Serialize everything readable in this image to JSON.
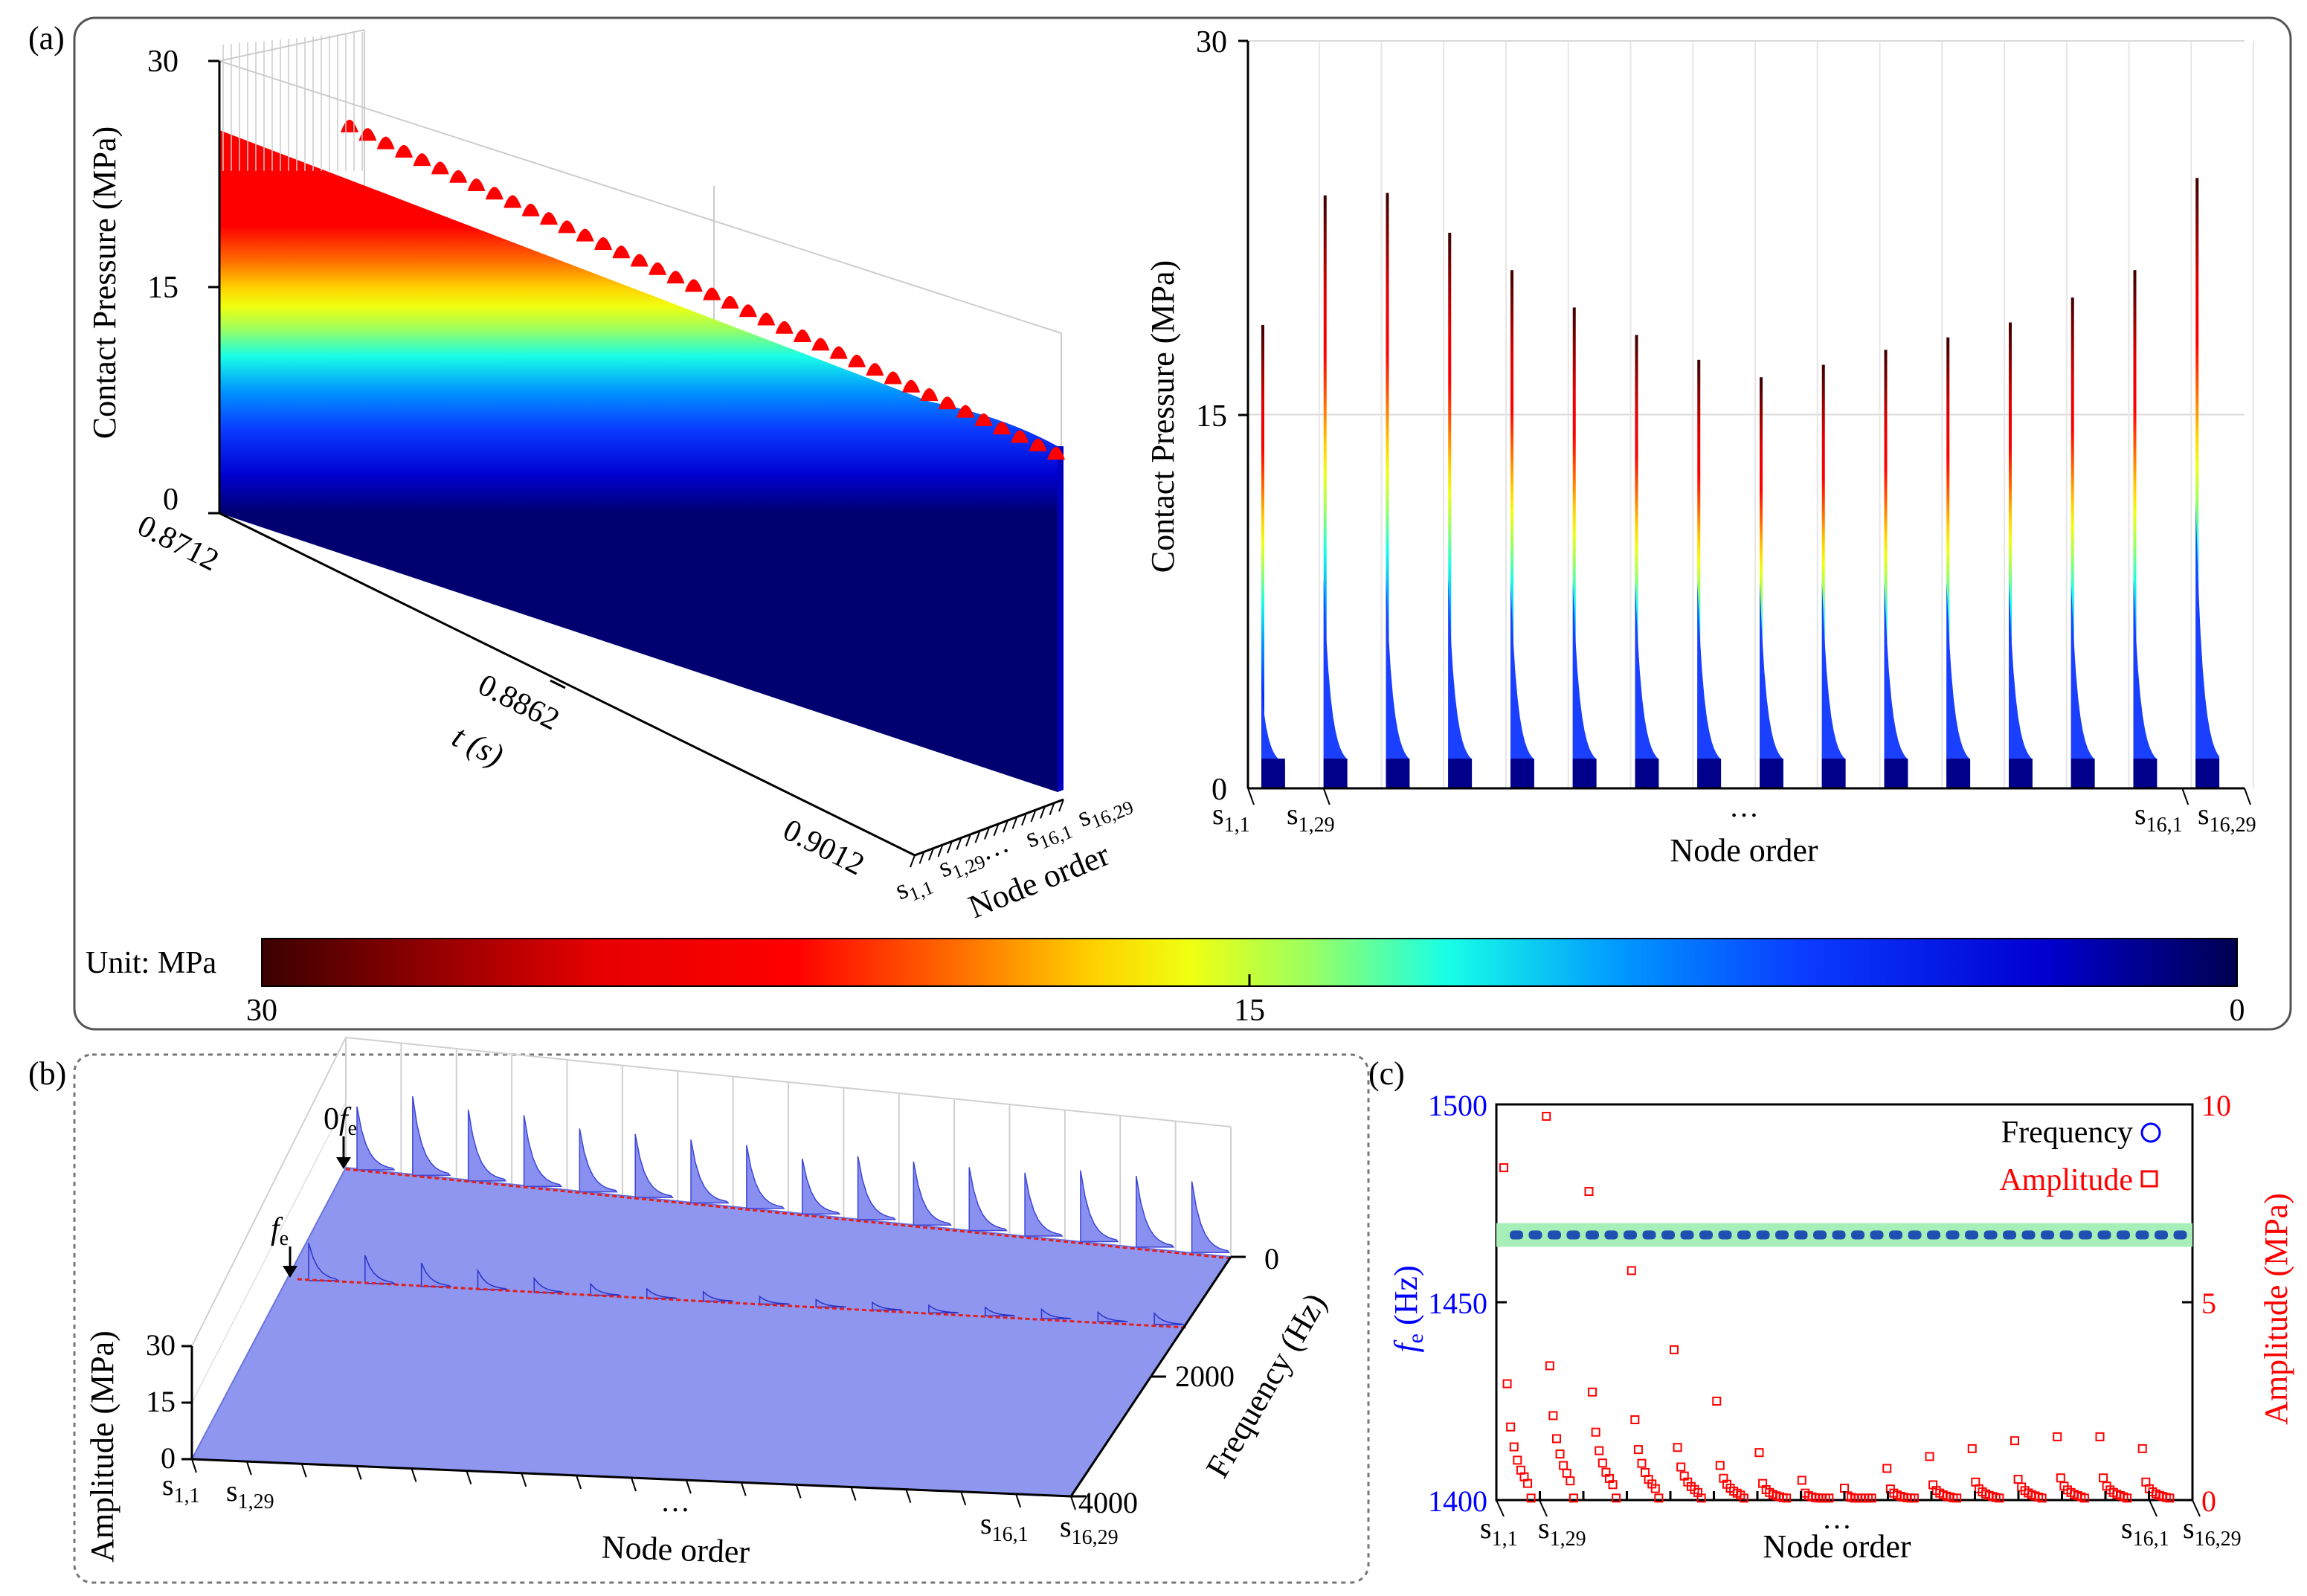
{
  "labels": {
    "panel_a": "(a)",
    "panel_b": "(b)",
    "panel_c": "(c)"
  },
  "chart_data": [
    {
      "id": "a-3d",
      "type": "area",
      "title": "",
      "zlabel": "Contact Pressure (MPa)",
      "zticks": [
        "0",
        "15",
        "30"
      ],
      "ylabel": "t (s)",
      "yticks": [
        "0.8712",
        "0.8862",
        "0.9012"
      ],
      "xlabel": "Node order",
      "xticks": [
        "s1,1",
        "s1,29",
        "…",
        "s16,1",
        "s16,29"
      ],
      "zlim": [
        0,
        30
      ],
      "description_values": {
        "peak_pressure_range_MPa": [
          21,
          27
        ],
        "periodic_peaks_count": 40
      }
    },
    {
      "id": "a-2d",
      "type": "bar",
      "ylabel": "Contact Pressure (MPa)",
      "yticks": [
        "0",
        "15",
        "30"
      ],
      "ylim": [
        0,
        30
      ],
      "xlabel": "Node order",
      "xticks": [
        "s1,1",
        "s1,29",
        "…",
        "s16,1",
        "s16,29"
      ],
      "series": [
        {
          "name": "segment peaks",
          "values": [
            18.6,
            23.8,
            23.9,
            22.3,
            20.8,
            19.3,
            18.2,
            17.2,
            16.5,
            17.0,
            17.6,
            18.1,
            18.7,
            19.7,
            20.8,
            24.5
          ]
        }
      ],
      "segment_low_values": [
        4.0,
        8.4,
        8.5,
        8.4,
        8.3,
        8.3,
        8.3,
        8.3,
        8.3,
        8.3,
        8.3,
        8.3,
        8.3,
        8.3,
        8.4,
        11.5
      ]
    },
    {
      "id": "colorbar",
      "type": "heatmap",
      "label": "Unit: MPa",
      "ticks": [
        "30",
        "15",
        "0"
      ],
      "range": [
        30,
        0
      ],
      "colors": [
        "#3b0000",
        "#8c0000",
        "#e60000",
        "#ff0000",
        "#ff6a00",
        "#ffd000",
        "#f0ff10",
        "#9bff60",
        "#18ffe6",
        "#0096ff",
        "#0a3cff",
        "#0000d2",
        "#000050"
      ]
    },
    {
      "id": "b-3d",
      "type": "area",
      "zlabel": "Amplitude (MPa)",
      "zticks": [
        "0",
        "15",
        "30"
      ],
      "ylabel": "Frequency (Hz)",
      "yticks": [
        "0",
        "2000",
        "4000"
      ],
      "xlabel": "Node order",
      "xticks": [
        "s1,1",
        "s1,29",
        "…",
        "s16,1",
        "s16,29"
      ],
      "annotations": [
        "0fe",
        "fe"
      ],
      "spike_heights_0fe": [
        8,
        10,
        9,
        9,
        8,
        8,
        8,
        8,
        7,
        8,
        8,
        8,
        8,
        9,
        9,
        9
      ],
      "spike_heights_fe": [
        4,
        3,
        2.5,
        2,
        1.5,
        1.2,
        1,
        1,
        0.8,
        0.8,
        0.8,
        0.8,
        0.9,
        1,
        1,
        1.2
      ]
    },
    {
      "id": "c-scatter",
      "type": "scatter",
      "ylabel_left": "fe (Hz)",
      "ylabel_right": "Amplitude (MPa)",
      "xlabel": "Node order",
      "yticks_left": [
        "1400",
        "1450",
        "1500"
      ],
      "yticks_right": [
        "0",
        "5",
        "10"
      ],
      "xticks": [
        "s1,1",
        "s1,29",
        "…",
        "s16,1",
        "s16,29"
      ],
      "ylim_left": [
        1400,
        1500
      ],
      "ylim_right": [
        0,
        10
      ],
      "legend": [
        {
          "name": "Frequency",
          "color": "#0000ff",
          "marker": "circle"
        },
        {
          "name": "Amplitude",
          "color": "#ff0000",
          "marker": "square"
        }
      ],
      "frequency_value_Hz": 1467,
      "band_Hz": [
        1464,
        1470
      ],
      "amplitude_maxima": [
        8.4,
        9.7,
        7.8,
        5.8,
        3.8,
        2.5,
        1.2,
        0.5,
        0.3,
        0.8,
        1.1,
        1.3,
        1.5,
        1.6,
        1.6,
        1.3
      ]
    }
  ]
}
